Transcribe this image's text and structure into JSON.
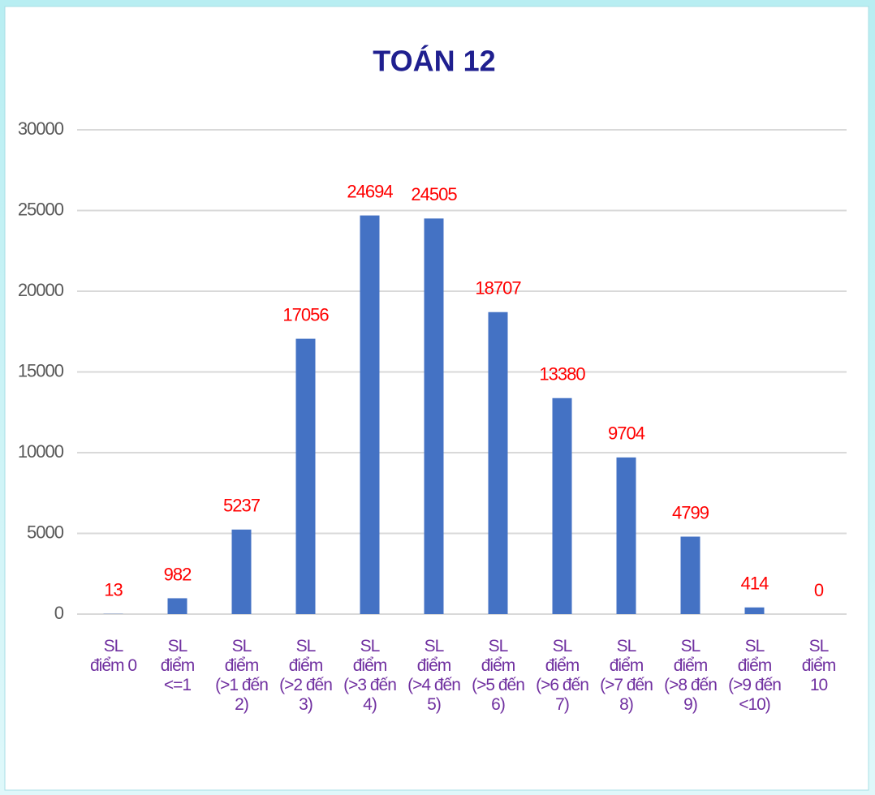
{
  "chart_data": {
    "type": "bar",
    "title": "TOÁN 12",
    "categories": [
      "SL\nđiểm 0",
      "SL\nđiểm\n<=1",
      "SL\nđiểm\n(>1 đến\n2)",
      "SL\nđiểm\n(>2 đến\n3)",
      "SL\nđiểm\n(>3 đến\n4)",
      "SL\nđiểm\n(>4 đến\n5)",
      "SL\nđiểm\n(>5 đến\n6)",
      "SL\nđiểm\n(>6 đến\n7)",
      "SL\nđiểm\n(>7 đến\n8)",
      "SL\nđiểm\n(>8 đến\n9)",
      "SL\nđiểm\n(>9 đến\n<10)",
      "SL\nđiểm\n10"
    ],
    "values": [
      13,
      982,
      5237,
      17056,
      24694,
      24505,
      18707,
      13380,
      9704,
      4799,
      414,
      0
    ],
    "color": "#4472c4",
    "label_color": "#ff0000",
    "category_color": "#7030a0",
    "ylim": [
      0,
      30000
    ],
    "yticks": [
      0,
      5000,
      10000,
      15000,
      20000,
      25000,
      30000
    ],
    "grid": true
  }
}
